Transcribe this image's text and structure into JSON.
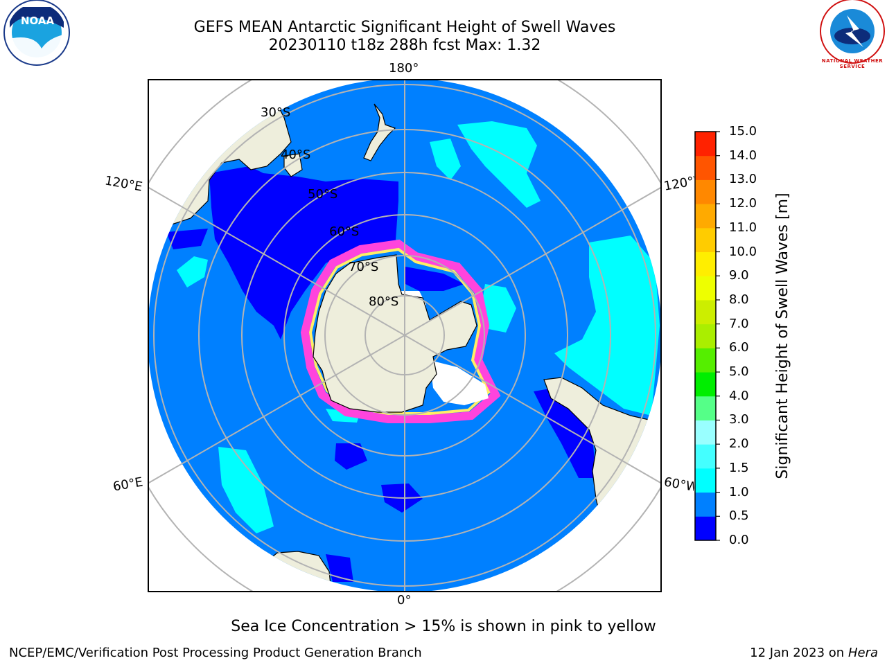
{
  "header": {
    "title_line1": "GEFS MEAN Antarctic Significant Height of Swell Waves",
    "title_line2": "20230110 t18z 288h fcst   Max: 1.32"
  },
  "logos": {
    "noara_name": "noaa-logo",
    "noaa_text": "NOAA",
    "nws_name": "nws-logo",
    "nws_text": "NATIONAL WEATHER SERVICE"
  },
  "map": {
    "longitude_labels": {
      "top": "180°",
      "bottom": "0°",
      "left_upper": "120°E",
      "left_lower": "60°E",
      "right_upper": "120°W",
      "right_lower": "60°W"
    },
    "latitude_labels": [
      "30°S",
      "40°S",
      "50°S",
      "60°S",
      "70°S",
      "80°S"
    ],
    "colors": {
      "land": "#eeeedc",
      "ocean_main": "#0080ff",
      "ocean_low": "#0000ff",
      "ocean_mid": "#00ffff",
      "ice_white": "#ffffff",
      "ice_pink": "#ff44dd",
      "ice_yellow": "#ffee66"
    }
  },
  "colorbar": {
    "label": "Significant Height of Swell Waves [m]",
    "ticks": [
      "0.0",
      "0.5",
      "1.0",
      "1.5",
      "2.0",
      "3.0",
      "4.0",
      "5.0",
      "6.0",
      "7.0",
      "8.0",
      "9.0",
      "10.0",
      "11.0",
      "12.0",
      "13.0",
      "14.0",
      "15.0"
    ],
    "colors": [
      "#0000ff",
      "#0080ff",
      "#00ffff",
      "#44ffff",
      "#99ffff",
      "#55ff88",
      "#00ee00",
      "#55ee00",
      "#aaee00",
      "#ccee00",
      "#eeff00",
      "#ffee00",
      "#ffcc00",
      "#ffaa00",
      "#ff8800",
      "#ff5500",
      "#ff2200"
    ]
  },
  "footer": {
    "note": "Sea Ice Concentration > 15% is shown in pink to yellow",
    "credit": "NCEP/EMC/Verification Post Processing Product Generation Branch",
    "date": "12 Jan 2023 on ",
    "machine": "Hera"
  }
}
